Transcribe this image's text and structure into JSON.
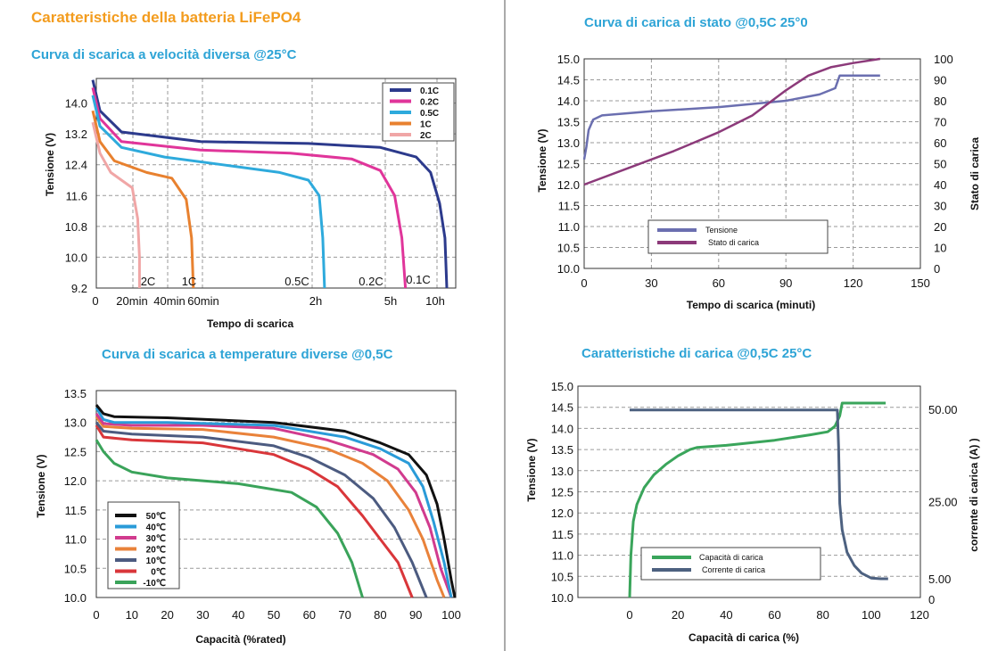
{
  "page": {
    "main_title": "Caratteristiche della batteria LiFePO4"
  },
  "chart_data": [
    {
      "id": "c1",
      "type": "line",
      "title": "Curva di scarica a velocità diversa @25°C",
      "xlabel": "Tempo di scarica",
      "ylabel": "Tensione (V)",
      "ylim": [
        9.2,
        14.8
      ],
      "y_ticks": [
        "14.0",
        "13.2",
        "12.4",
        "11.6",
        "10.8",
        "10.0",
        "9.2"
      ],
      "x_ticks": [
        "0",
        "20min",
        "40min",
        "60min",
        "2h",
        "5h",
        "10h"
      ],
      "legend_position": "top-right",
      "series": [
        {
          "name": "0.1C",
          "end_label": "0.1C",
          "color": "#2c3a8c",
          "points": [
            [
              0.0,
              14.6
            ],
            [
              0.02,
              13.8
            ],
            [
              0.08,
              13.25
            ],
            [
              0.3,
              13.0
            ],
            [
              0.6,
              12.95
            ],
            [
              0.8,
              12.85
            ],
            [
              0.9,
              12.6
            ],
            [
              0.94,
              12.2
            ],
            [
              0.965,
              11.4
            ],
            [
              0.98,
              10.5
            ],
            [
              0.985,
              9.2
            ]
          ]
        },
        {
          "name": "0.2C",
          "end_label": "0.2C",
          "color": "#e0359a",
          "points": [
            [
              0.0,
              14.4
            ],
            [
              0.02,
              13.6
            ],
            [
              0.08,
              13.0
            ],
            [
              0.3,
              12.78
            ],
            [
              0.55,
              12.7
            ],
            [
              0.72,
              12.55
            ],
            [
              0.8,
              12.25
            ],
            [
              0.84,
              11.6
            ],
            [
              0.86,
              10.5
            ],
            [
              0.87,
              9.2
            ]
          ]
        },
        {
          "name": "0.5C",
          "end_label": "0.5C",
          "color": "#2eaadc",
          "points": [
            [
              0.0,
              14.2
            ],
            [
              0.02,
              13.4
            ],
            [
              0.08,
              12.85
            ],
            [
              0.2,
              12.6
            ],
            [
              0.36,
              12.4
            ],
            [
              0.52,
              12.2
            ],
            [
              0.6,
              12.0
            ],
            [
              0.63,
              11.6
            ],
            [
              0.64,
              10.5
            ],
            [
              0.645,
              9.2
            ]
          ]
        },
        {
          "name": "1C",
          "end_label": "1C",
          "color": "#e8812f",
          "points": [
            [
              0.0,
              13.8
            ],
            [
              0.02,
              13.0
            ],
            [
              0.06,
              12.5
            ],
            [
              0.15,
              12.2
            ],
            [
              0.22,
              12.05
            ],
            [
              0.26,
              11.5
            ],
            [
              0.275,
              10.5
            ],
            [
              0.28,
              9.2
            ]
          ]
        },
        {
          "name": "2C",
          "end_label": "2C",
          "color": "#f0a6a6",
          "points": [
            [
              0.0,
              13.5
            ],
            [
              0.02,
              12.7
            ],
            [
              0.05,
              12.2
            ],
            [
              0.08,
              12.0
            ],
            [
              0.11,
              11.8
            ],
            [
              0.125,
              11.0
            ],
            [
              0.13,
              10.0
            ],
            [
              0.13,
              9.2
            ]
          ]
        }
      ]
    },
    {
      "id": "c2",
      "type": "line",
      "title": "Curva di carica di stato @0,5C 25°0",
      "xlabel": "Tempo di scarica  (minuti)",
      "ylabel": "Tensione (V)",
      "y2label": "Stato di carica",
      "xlim": [
        0,
        150
      ],
      "ylim": [
        10.0,
        15.0
      ],
      "y2lim": [
        0,
        100
      ],
      "x_ticks": [
        "0",
        "30",
        "60",
        "90",
        "120",
        "150"
      ],
      "y_ticks": [
        "15.0",
        "14.5",
        "14.0",
        "13.5",
        "13.0",
        "12.5",
        "12.0",
        "11.5",
        "11.0",
        "10.5",
        "10.0"
      ],
      "y2_ticks": [
        "100",
        "90",
        "80",
        "70",
        "60",
        "50",
        "40",
        "30",
        "20",
        "10",
        "0"
      ],
      "legend_position": "bottom-center",
      "series": [
        {
          "name": "Tensione",
          "axis": "left",
          "color": "#6b6fb0",
          "points": [
            [
              0,
              12.6
            ],
            [
              1,
              12.9
            ],
            [
              2,
              13.3
            ],
            [
              4,
              13.55
            ],
            [
              8,
              13.65
            ],
            [
              30,
              13.75
            ],
            [
              60,
              13.85
            ],
            [
              90,
              14.0
            ],
            [
              105,
              14.15
            ],
            [
              112,
              14.3
            ],
            [
              114,
              14.6
            ],
            [
              132,
              14.6
            ]
          ]
        },
        {
          "name": "Stato di carica",
          "axis": "right",
          "color": "#8c3a7a",
          "points": [
            [
              0,
              40
            ],
            [
              20,
              48
            ],
            [
              40,
              56
            ],
            [
              60,
              65
            ],
            [
              75,
              73
            ],
            [
              90,
              85
            ],
            [
              100,
              92
            ],
            [
              110,
              96
            ],
            [
              120,
              98
            ],
            [
              132,
              100
            ]
          ]
        }
      ]
    },
    {
      "id": "c3",
      "type": "line",
      "title": "Curva di scarica a temperature diverse @0,5C",
      "xlabel": "Capacità  (%rated)",
      "ylabel": "Tensione (V)",
      "xlim": [
        0,
        102
      ],
      "ylim": [
        10.0,
        13.5
      ],
      "x_ticks": [
        "0",
        "10",
        "20",
        "30",
        "40",
        "50",
        "60",
        "70",
        "80",
        "90",
        "100"
      ],
      "y_ticks": [
        "13.5",
        "13.0",
        "12.5",
        "12.0",
        "11.5",
        "11.0",
        "10.5",
        "10.0"
      ],
      "legend_position": "bottom-left",
      "series": [
        {
          "name": "50℃",
          "color": "#111111",
          "points": [
            [
              0,
              13.3
            ],
            [
              2,
              13.15
            ],
            [
              5,
              13.1
            ],
            [
              20,
              13.08
            ],
            [
              50,
              13.0
            ],
            [
              70,
              12.85
            ],
            [
              80,
              12.65
            ],
            [
              88,
              12.45
            ],
            [
              93,
              12.1
            ],
            [
              96,
              11.6
            ],
            [
              98,
              11.0
            ],
            [
              100,
              10.3
            ],
            [
              101,
              10.0
            ]
          ]
        },
        {
          "name": "40℃",
          "color": "#2a9bd8",
          "points": [
            [
              0,
              13.25
            ],
            [
              2,
              13.05
            ],
            [
              5,
              13.0
            ],
            [
              20,
              13.0
            ],
            [
              50,
              12.95
            ],
            [
              70,
              12.75
            ],
            [
              80,
              12.55
            ],
            [
              88,
              12.3
            ],
            [
              92,
              11.9
            ],
            [
              95,
              11.3
            ],
            [
              98,
              10.6
            ],
            [
              100,
              10.0
            ]
          ]
        },
        {
          "name": "30℃",
          "color": "#d13b8e",
          "points": [
            [
              0,
              13.15
            ],
            [
              2,
              12.98
            ],
            [
              10,
              12.95
            ],
            [
              30,
              12.95
            ],
            [
              50,
              12.9
            ],
            [
              65,
              12.7
            ],
            [
              78,
              12.45
            ],
            [
              85,
              12.2
            ],
            [
              90,
              11.8
            ],
            [
              94,
              11.2
            ],
            [
              97,
              10.5
            ],
            [
              100,
              10.0
            ]
          ]
        },
        {
          "name": "20℃",
          "color": "#e9823a",
          "points": [
            [
              0,
              13.1
            ],
            [
              2,
              12.93
            ],
            [
              10,
              12.9
            ],
            [
              30,
              12.88
            ],
            [
              50,
              12.75
            ],
            [
              65,
              12.55
            ],
            [
              75,
              12.3
            ],
            [
              82,
              12.0
            ],
            [
              88,
              11.5
            ],
            [
              92,
              11.0
            ],
            [
              96,
              10.3
            ],
            [
              98,
              10.0
            ]
          ]
        },
        {
          "name": "10℃",
          "color": "#4c5b80",
          "points": [
            [
              0,
              13.0
            ],
            [
              2,
              12.85
            ],
            [
              10,
              12.8
            ],
            [
              30,
              12.75
            ],
            [
              50,
              12.6
            ],
            [
              60,
              12.4
            ],
            [
              70,
              12.1
            ],
            [
              78,
              11.7
            ],
            [
              84,
              11.2
            ],
            [
              89,
              10.6
            ],
            [
              93,
              10.0
            ]
          ]
        },
        {
          "name": "0℃",
          "color": "#d9363a",
          "points": [
            [
              0,
              12.95
            ],
            [
              2,
              12.75
            ],
            [
              10,
              12.7
            ],
            [
              30,
              12.65
            ],
            [
              50,
              12.45
            ],
            [
              60,
              12.2
            ],
            [
              68,
              11.9
            ],
            [
              75,
              11.4
            ],
            [
              80,
              11.0
            ],
            [
              85,
              10.6
            ],
            [
              89,
              10.0
            ]
          ]
        },
        {
          "name": "-10℃",
          "color": "#3aa35a",
          "points": [
            [
              0,
              12.7
            ],
            [
              2,
              12.5
            ],
            [
              5,
              12.3
            ],
            [
              10,
              12.15
            ],
            [
              20,
              12.05
            ],
            [
              40,
              11.95
            ],
            [
              55,
              11.8
            ],
            [
              62,
              11.55
            ],
            [
              68,
              11.1
            ],
            [
              72,
              10.6
            ],
            [
              75,
              10.0
            ]
          ]
        }
      ]
    },
    {
      "id": "c4",
      "type": "line",
      "title": "Caratteristiche di carica @0,5C 25°C",
      "xlabel": "Capacità di carica  (%)",
      "ylabel": "Tensione (V)",
      "y2label": "corrente di carica (A) )",
      "xlim": [
        -22,
        120
      ],
      "ylim": [
        10.0,
        15.0
      ],
      "y2lim": [
        2.0,
        55.0
      ],
      "x_ticks": [
        "0",
        "20",
        "40",
        "60",
        "80",
        "100",
        "120"
      ],
      "y_ticks": [
        "15.0",
        "14.5",
        "14.0",
        "13.5",
        "13.0",
        "12.5",
        "12.0",
        "11.5",
        "11.0",
        "10.5",
        "10.0"
      ],
      "y2_ticks": [
        "50.00",
        "25.00",
        "5.00",
        "0"
      ],
      "legend_position": "bottom-left",
      "series": [
        {
          "name": "Capacità di carica",
          "axis": "left",
          "color": "#3aa55b",
          "points": [
            [
              0,
              10.0
            ],
            [
              0.5,
              11.0
            ],
            [
              1.5,
              11.8
            ],
            [
              3,
              12.2
            ],
            [
              6,
              12.6
            ],
            [
              10,
              12.9
            ],
            [
              15,
              13.15
            ],
            [
              20,
              13.35
            ],
            [
              25,
              13.5
            ],
            [
              28,
              13.55
            ],
            [
              40,
              13.6
            ],
            [
              60,
              13.72
            ],
            [
              75,
              13.85
            ],
            [
              82,
              13.92
            ],
            [
              85,
              14.05
            ],
            [
              87,
              14.3
            ],
            [
              88,
              14.6
            ],
            [
              106,
              14.6
            ]
          ]
        },
        {
          "name": "Corrente di carica",
          "axis": "right",
          "color": "#4d6180",
          "points": [
            [
              0,
              49.8
            ],
            [
              86,
              49.8
            ],
            [
              86.5,
              40
            ],
            [
              87,
              25
            ],
            [
              88,
              18
            ],
            [
              90,
              12
            ],
            [
              93,
              8.5
            ],
            [
              96,
              6.5
            ],
            [
              100,
              5.2
            ],
            [
              104,
              5.0
            ],
            [
              107,
              5.0
            ]
          ]
        }
      ]
    }
  ]
}
